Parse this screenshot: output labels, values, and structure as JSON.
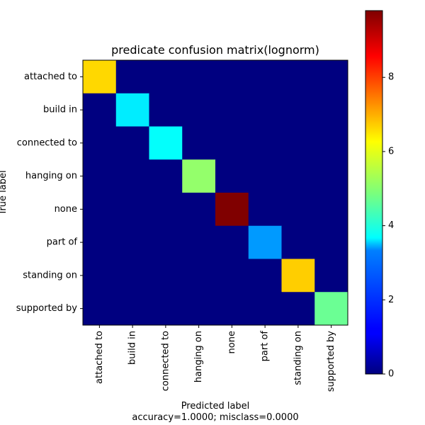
{
  "chart_data": {
    "type": "heatmap",
    "title": "predicate confusion matrix(lognorm)",
    "xlabel": "Predicted label",
    "ylabel": "True label",
    "subtitle": "accuracy=1.0000; misclass=0.0000",
    "x_categories": [
      "attached to",
      "build in",
      "connected to",
      "hanging on",
      "none",
      "part of",
      "standing on",
      "supported by"
    ],
    "y_categories": [
      "attached to",
      "build in",
      "connected to",
      "hanging on",
      "none",
      "part of",
      "standing on",
      "supported by"
    ],
    "values": [
      [
        6.5,
        0,
        0,
        0,
        0,
        0,
        0,
        0
      ],
      [
        0,
        3.5,
        0,
        0,
        0,
        0,
        0,
        0
      ],
      [
        0,
        0,
        3.7,
        0,
        0,
        0,
        0,
        0
      ],
      [
        0,
        0,
        0,
        5.1,
        0,
        0,
        0,
        0
      ],
      [
        0,
        0,
        0,
        0,
        9.8,
        0,
        0,
        0
      ],
      [
        0,
        0,
        0,
        0,
        0,
        2.7,
        0,
        0
      ],
      [
        0,
        0,
        0,
        0,
        0,
        0,
        6.6,
        0
      ],
      [
        0,
        0,
        0,
        0,
        0,
        0,
        0,
        4.7
      ]
    ],
    "colormap": "jet",
    "colorbar": {
      "range": [
        0,
        9.8
      ],
      "ticks": [
        0,
        2,
        4,
        6,
        8
      ],
      "tick_labels": [
        "0",
        "2",
        "4",
        "6",
        "8"
      ]
    },
    "grid": false
  }
}
